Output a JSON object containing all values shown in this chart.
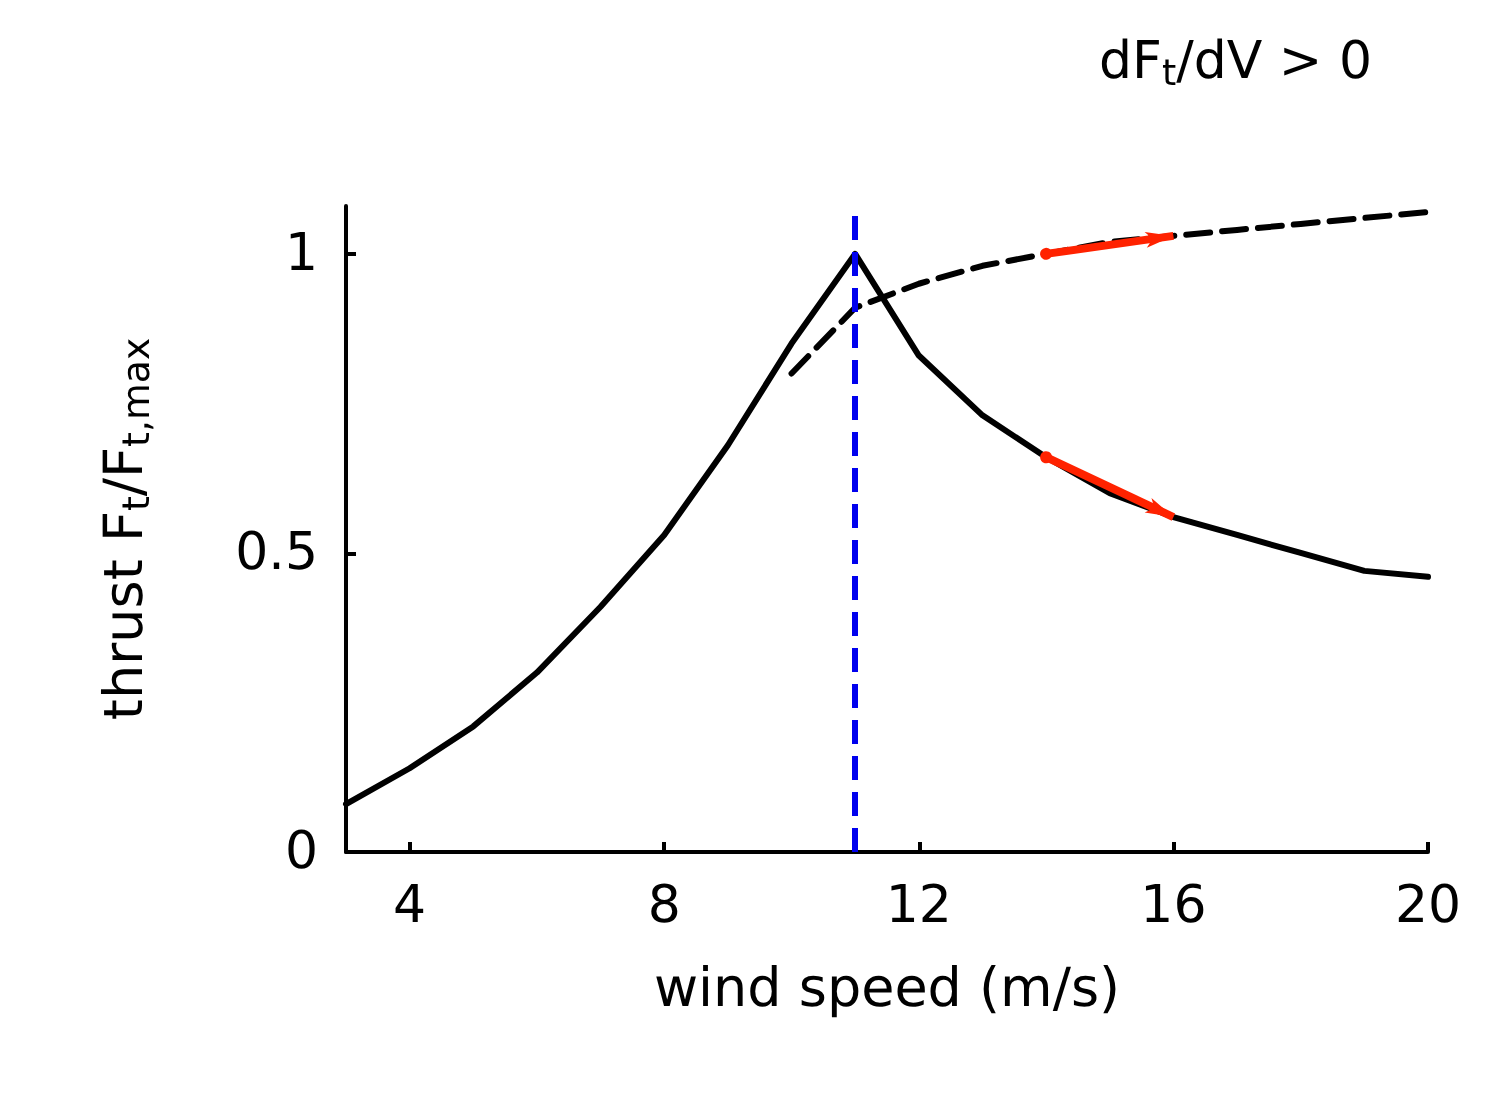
{
  "chart_data": {
    "type": "line",
    "xlabel": "wind speed (m/s)",
    "ylabel": "thrust F$_{t}$/F$_{t,max}$",
    "xlim": [
      3,
      20
    ],
    "xticks": [
      4,
      8,
      12,
      16,
      20
    ],
    "ylim": [
      0,
      1.08
    ],
    "yticks": [
      0,
      0.5,
      1
    ],
    "marker": "none",
    "series": [
      {
        "color": "#000000",
        "line_style": "solid",
        "x": [
          3,
          4,
          5,
          6,
          7,
          8,
          9,
          10,
          11,
          12,
          13,
          14,
          15,
          16,
          17,
          18,
          19,
          20
        ],
        "values": [
          0.08,
          0.14,
          0.21,
          0.3,
          0.41,
          0.53,
          0.68,
          0.85,
          1.0,
          0.83,
          0.73,
          0.66,
          0.6,
          0.56,
          0.53,
          0.5,
          0.47,
          0.46
        ]
      },
      {
        "color": "#000000",
        "line_style": "dashed",
        "x": [
          10,
          11,
          12,
          13,
          14,
          15,
          16,
          17,
          18,
          19,
          20
        ],
        "values": [
          0.8,
          0.91,
          0.95,
          0.98,
          1.0,
          1.02,
          1.03,
          1.04,
          1.05,
          1.06,
          1.07
        ]
      }
    ],
    "ref_lines": [
      {
        "axis": "x",
        "value": 11,
        "color": "#0000ee",
        "line_style": "dashed"
      }
    ],
    "annotations": [
      "dF$_{t}$/dV > 0"
    ]
  }
}
